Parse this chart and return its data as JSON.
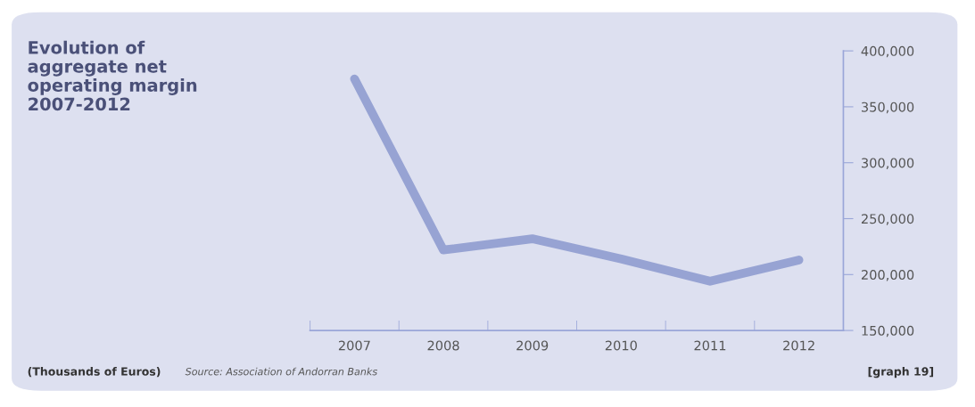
{
  "chart_data": {
    "type": "line",
    "title": "Evolution of\naggregate net\noperating margin\n2007-2012",
    "categories": [
      "2007",
      "2008",
      "2009",
      "2010",
      "2011",
      "2012"
    ],
    "series": [
      {
        "color": "#97a3d3",
        "values": [
          375000,
          222000,
          232000,
          214000,
          194000,
          213000
        ]
      }
    ],
    "ylim": [
      150000,
      400000
    ],
    "yticks": [
      {
        "value": 150000,
        "label": "150,000"
      },
      {
        "value": 200000,
        "label": "200,000"
      },
      {
        "value": 250000,
        "label": "250,000"
      },
      {
        "value": 300000,
        "label": "300,000"
      },
      {
        "value": 350000,
        "label": "350,000"
      },
      {
        "value": 400000,
        "label": "400,000"
      }
    ],
    "grid": false,
    "legend": false,
    "marker": "none",
    "line_style": "solid",
    "annotations": [
      "(Thousands of Euros)",
      "Source: Association of Andorran Banks",
      "[graph 19]"
    ]
  }
}
